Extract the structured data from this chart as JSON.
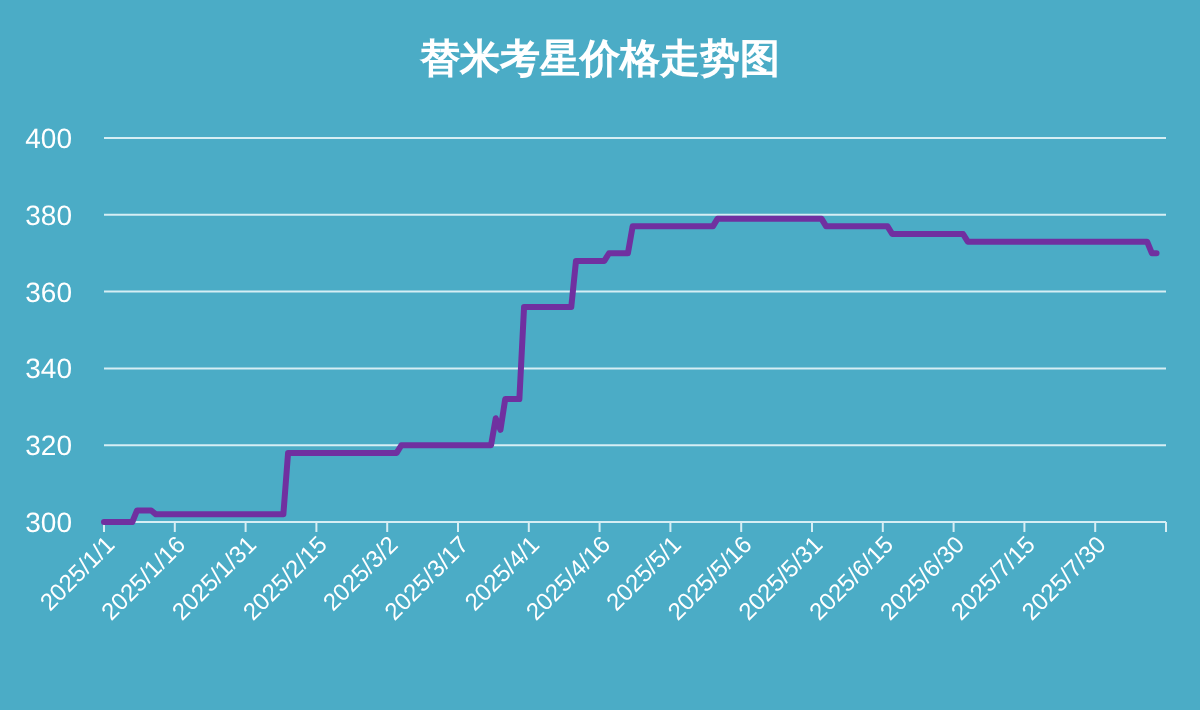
{
  "chart_data": {
    "type": "line",
    "title": "替米考星价格走势图",
    "x": [
      "2025-01-01",
      "2025-01-07",
      "2025-01-08",
      "2025-01-11",
      "2025-01-12",
      "2025-02-08",
      "2025-02-09",
      "2025-03-04",
      "2025-03-05",
      "2025-03-24",
      "2025-03-25",
      "2025-03-26",
      "2025-03-27",
      "2025-03-30",
      "2025-03-31",
      "2025-04-10",
      "2025-04-11",
      "2025-04-17",
      "2025-04-18",
      "2025-04-22",
      "2025-04-23",
      "2025-05-10",
      "2025-05-11",
      "2025-06-02",
      "2025-06-03",
      "2025-06-16",
      "2025-06-17",
      "2025-07-02",
      "2025-07-03",
      "2025-08-10",
      "2025-08-11",
      "2025-08-12"
    ],
    "series": [
      {
        "color": "#7030a0",
        "values": [
          300,
          300,
          303,
          303,
          302,
          302,
          318,
          318,
          320,
          320,
          327,
          324,
          332,
          332,
          356,
          356,
          368,
          368,
          370,
          370,
          377,
          377,
          379,
          379,
          377,
          377,
          375,
          375,
          373,
          373,
          370,
          370
        ]
      }
    ],
    "xlim": [
      "2025-01-01",
      "2025-08-14"
    ],
    "xticks": [
      {
        "value": "2025-01-01",
        "label": "2025/1/1"
      },
      {
        "value": "2025-01-16",
        "label": "2025/1/16"
      },
      {
        "value": "2025-01-31",
        "label": "2025/1/31"
      },
      {
        "value": "2025-02-15",
        "label": "2025/2/15"
      },
      {
        "value": "2025-03-02",
        "label": "2025/3/2"
      },
      {
        "value": "2025-03-17",
        "label": "2025/3/17"
      },
      {
        "value": "2025-04-01",
        "label": "2025/4/1"
      },
      {
        "value": "2025-04-16",
        "label": "2025/4/16"
      },
      {
        "value": "2025-05-01",
        "label": "2025/5/1"
      },
      {
        "value": "2025-05-16",
        "label": "2025/5/16"
      },
      {
        "value": "2025-05-31",
        "label": "2025/5/31"
      },
      {
        "value": "2025-06-15",
        "label": "2025/6/15"
      },
      {
        "value": "2025-06-30",
        "label": "2025/6/30"
      },
      {
        "value": "2025-07-15",
        "label": "2025/7/15"
      },
      {
        "value": "2025-07-30",
        "label": "2025/7/30"
      },
      {
        "value": "2025-08-14",
        "label": null
      }
    ],
    "ylim": [
      300,
      400
    ],
    "yticks": [
      300,
      320,
      340,
      360,
      380,
      400
    ],
    "grid": "y",
    "marker": "none",
    "line_style": "solid"
  }
}
